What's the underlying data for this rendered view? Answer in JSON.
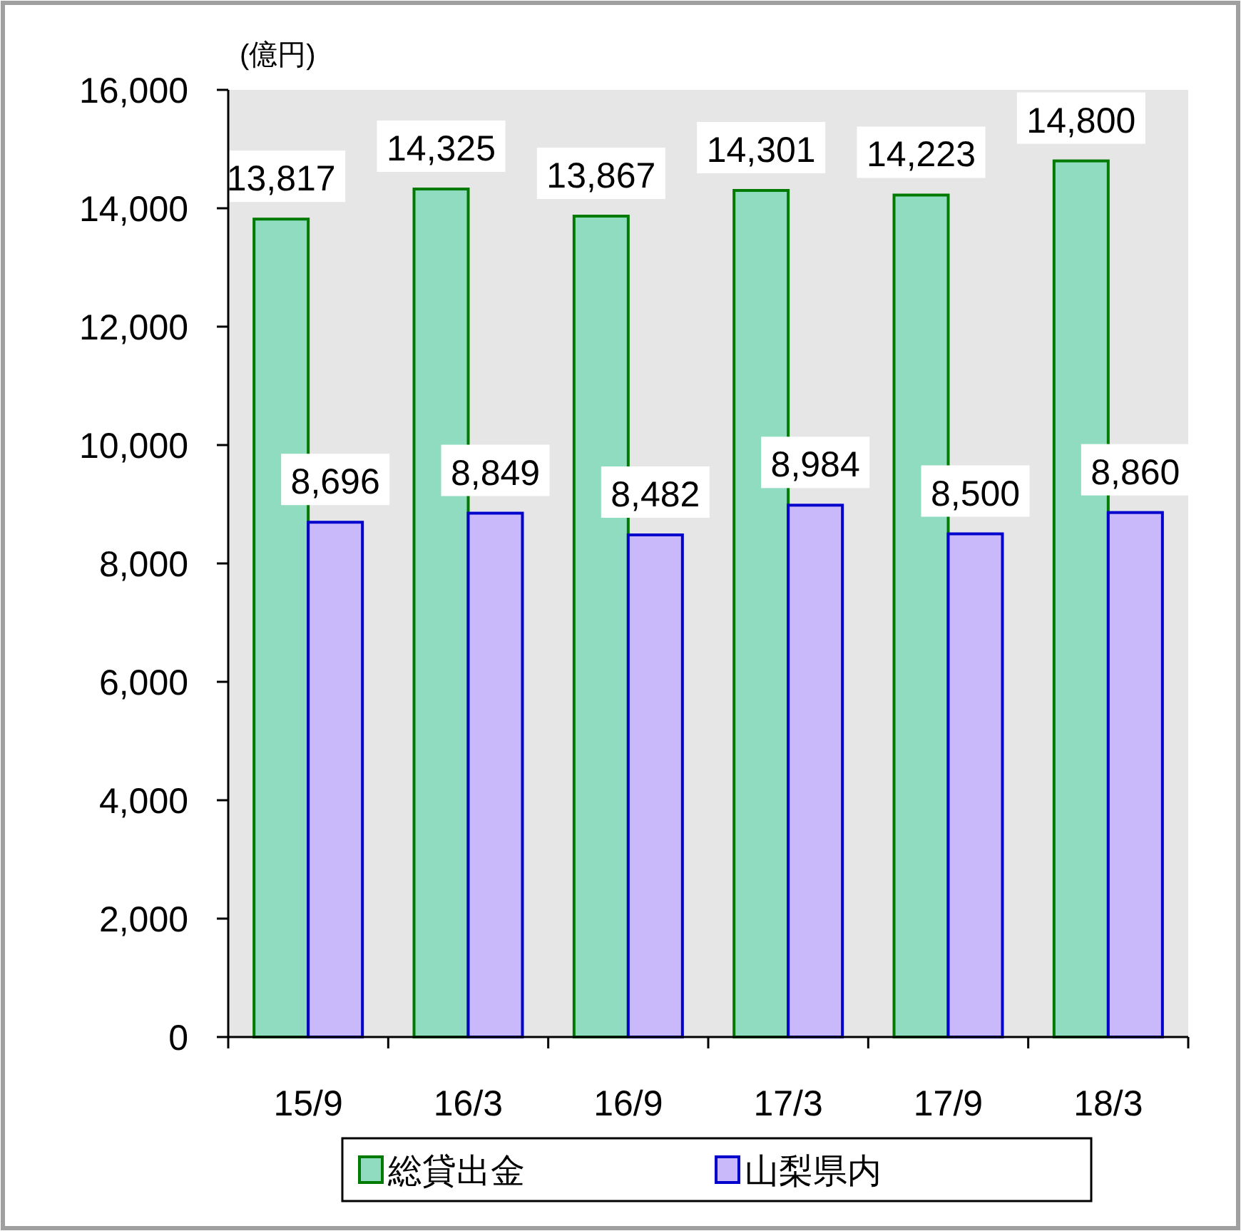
{
  "chart_data": {
    "type": "bar",
    "ylabel": "(億円)",
    "categories": [
      "15/9",
      "16/3",
      "16/9",
      "17/3",
      "17/9",
      "18/3"
    ],
    "series": [
      {
        "name": "総貸出金",
        "color": "#8fdcc0",
        "values": [
          13817,
          14325,
          13867,
          14301,
          14223,
          14800
        ],
        "value_labels": [
          "13,817",
          "14,325",
          "13,867",
          "14,301",
          "14,223",
          "14,800"
        ]
      },
      {
        "name": "山梨県内",
        "color": "#c9b8fa",
        "values": [
          8696,
          8849,
          8482,
          8984,
          8500,
          8860
        ],
        "value_labels": [
          "8,696",
          "8,849",
          "8,482",
          "8,984",
          "8,500",
          "8,860"
        ]
      }
    ],
    "ylim": [
      0,
      16000
    ],
    "yticks": [
      {
        "value": 0,
        "label": "0"
      },
      {
        "value": 2000,
        "label": "2,000"
      },
      {
        "value": 4000,
        "label": "4,000"
      },
      {
        "value": 6000,
        "label": "6,000"
      },
      {
        "value": 8000,
        "label": "8,000"
      },
      {
        "value": 10000,
        "label": "10,000"
      },
      {
        "value": 12000,
        "label": "12,000"
      },
      {
        "value": 14000,
        "label": "14,000"
      },
      {
        "value": 16000,
        "label": "16,000"
      }
    ],
    "legend": "bottom"
  }
}
